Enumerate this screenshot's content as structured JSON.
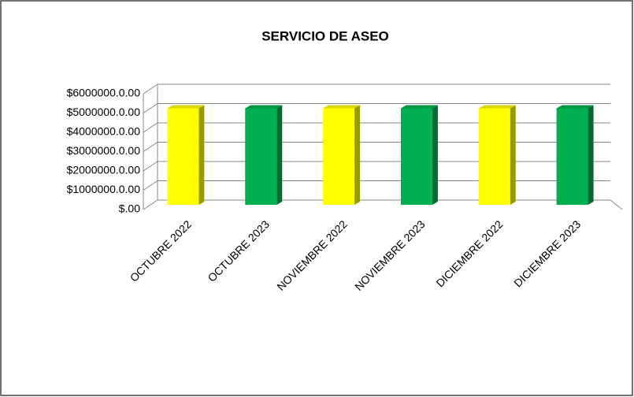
{
  "chart_data": {
    "type": "bar3d",
    "title": "SERVICIO DE ASEO",
    "categories": [
      "OCTUBRE 2022",
      "OCTUBRE 2023",
      "NOVIEMBRE 2022",
      "NOVIEMBRE 2023",
      "DICIEMBRE 2022",
      "DICIEMBRE 2023"
    ],
    "values": [
      5000000,
      5000000,
      5000000,
      5000000,
      5000000,
      5000000
    ],
    "colors": [
      "#ffff00",
      "#00b050",
      "#ffff00",
      "#00b050",
      "#ffff00",
      "#00b050"
    ],
    "ylim": [
      0,
      6000000
    ],
    "yticks": [
      {
        "value": 0,
        "label": "$.00"
      },
      {
        "value": 1000000,
        "label": "$1000000.0.00"
      },
      {
        "value": 2000000,
        "label": "$2000000.0.00"
      },
      {
        "value": 3000000,
        "label": "$3000000.0.00"
      },
      {
        "value": 4000000,
        "label": "$4000000.0.00"
      },
      {
        "value": 5000000,
        "label": "$5000000.0.00"
      },
      {
        "value": 6000000,
        "label": "$6000000.0.00"
      }
    ],
    "grid": true
  }
}
